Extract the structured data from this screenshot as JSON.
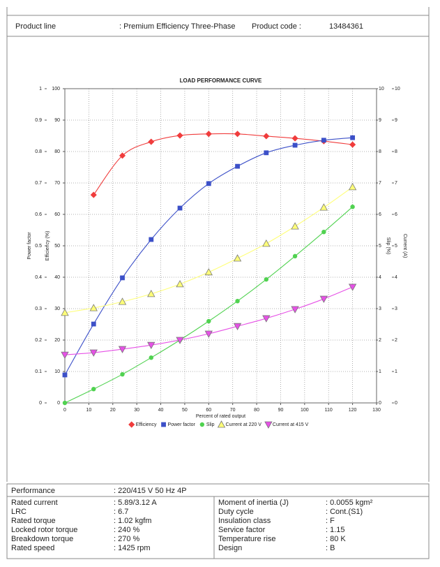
{
  "header": {
    "product_line_label": "Product line",
    "product_line_value": ": Premium Efficiency Three-Phase",
    "product_code_label": "Product code :",
    "product_code_value": "13484361"
  },
  "chart_data": {
    "type": "line",
    "title": "LOAD PERFORMANCE CURVE",
    "x_label": "Percent of rated output",
    "x": [
      0,
      12,
      24,
      36,
      48,
      60,
      72,
      84,
      96,
      108,
      120
    ],
    "xlim": [
      0,
      130
    ],
    "xticks": [
      0,
      10,
      20,
      30,
      40,
      50,
      60,
      70,
      80,
      90,
      100,
      110,
      120,
      130
    ],
    "grid": true,
    "legend": "bottom",
    "axes": [
      {
        "label": "Power factor",
        "lim": [
          0,
          1
        ],
        "ticks": [
          0,
          0.1,
          0.2,
          0.3,
          0.4,
          0.5,
          0.6,
          0.7,
          0.8,
          0.9,
          1
        ]
      },
      {
        "label": "Efficiency (%)",
        "lim": [
          0,
          100
        ],
        "ticks": [
          0,
          10,
          20,
          30,
          40,
          50,
          60,
          70,
          80,
          90,
          100
        ]
      },
      {
        "label": "Slip (%)",
        "lim": [
          0,
          10
        ],
        "ticks": [
          0,
          1,
          2,
          3,
          4,
          5,
          6,
          7,
          8,
          9,
          10
        ]
      },
      {
        "label": "Current (A)",
        "lim": [
          0,
          10
        ],
        "ticks": [
          0,
          1,
          2,
          3,
          4,
          5,
          6,
          7,
          8,
          9,
          10
        ]
      }
    ],
    "series": [
      {
        "name": "Efficiency",
        "color": "#f03c3c",
        "marker": "diamond",
        "axis": 1,
        "values": [
          null,
          66.2,
          78.7,
          83.1,
          85.1,
          85.6,
          85.6,
          84.9,
          84.2,
          83.3,
          82.2
        ]
      },
      {
        "name": "Power factor",
        "color": "#3c50c8",
        "marker": "square",
        "axis": 0,
        "values": [
          0.089,
          0.251,
          0.398,
          0.52,
          0.62,
          0.698,
          0.753,
          0.796,
          0.82,
          0.836,
          0.844
        ]
      },
      {
        "name": "Slip",
        "color": "#50d250",
        "marker": "circle",
        "axis": 2,
        "values": [
          0,
          0.44,
          0.91,
          1.44,
          2.0,
          2.6,
          3.24,
          3.93,
          4.67,
          5.44,
          6.24
        ]
      },
      {
        "name": "Current at 220 V",
        "color": "#ffff78",
        "marker": "triangle-up",
        "axis": 3,
        "values": [
          2.87,
          3.02,
          3.22,
          3.47,
          3.78,
          4.16,
          4.6,
          5.07,
          5.62,
          6.22,
          6.87
        ]
      },
      {
        "name": "Current at 415 V",
        "color": "#e650e6",
        "marker": "triangle-down",
        "axis": 3,
        "values": [
          1.53,
          1.6,
          1.71,
          1.84,
          2.0,
          2.2,
          2.44,
          2.69,
          2.98,
          3.31,
          3.69
        ]
      }
    ]
  },
  "specs": {
    "performance": [
      "Performance",
      ": 220/415 V 50 Hz 4P"
    ],
    "rows": [
      [
        "Rated current",
        ": 5.89/3.12 A",
        "Moment of inertia (J)",
        ": 0.0055 kgm²"
      ],
      [
        "LRC",
        ": 6.7",
        "Duty cycle",
        ": Cont.(S1)"
      ],
      [
        "Rated torque",
        ": 1.02 kgfm",
        "Insulation class",
        ": F"
      ],
      [
        "Locked rotor torque",
        ": 240 %",
        "Service factor",
        ": 1.15"
      ],
      [
        "Breakdown torque",
        ": 270 %",
        "Temperature rise",
        ": 80 K"
      ],
      [
        "Rated speed",
        ": 1425 rpm",
        "Design",
        ": B"
      ]
    ]
  }
}
